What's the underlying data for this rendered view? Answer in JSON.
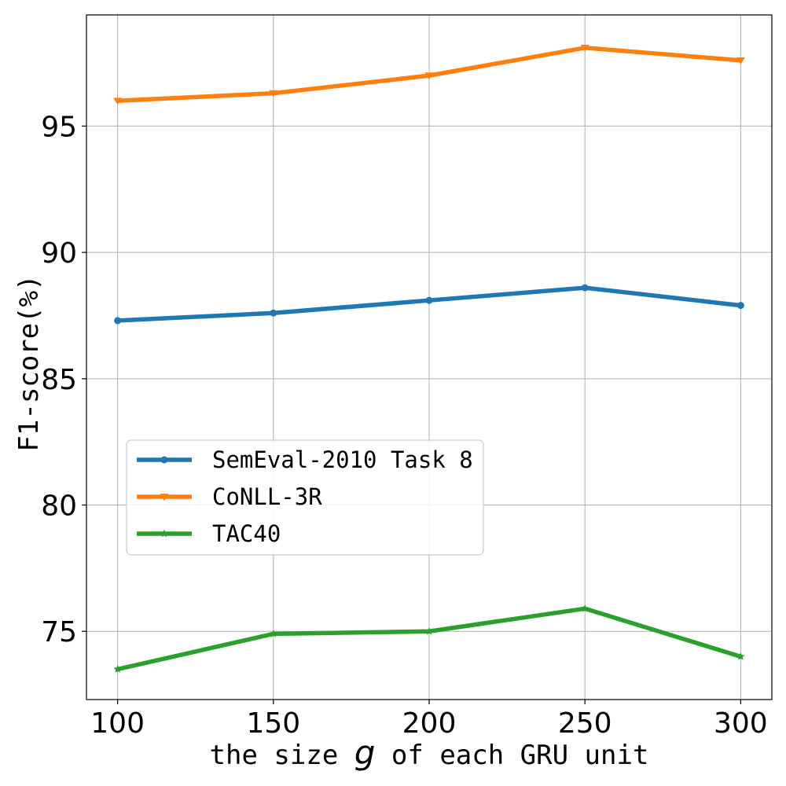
{
  "chart_data": {
    "type": "line",
    "xlabel": {
      "before": "the size ",
      "var": "g",
      "after": " of each GRU unit"
    },
    "ylabel": "F1-score(%)",
    "x": [
      100,
      150,
      200,
      250,
      300
    ],
    "x_ticks": [
      100,
      150,
      200,
      250,
      300
    ],
    "y_ticks": [
      75,
      80,
      85,
      90,
      95
    ],
    "xlim": [
      90,
      310
    ],
    "ylim": [
      72.3,
      99.4
    ],
    "grid": true,
    "legend_position": "center-left",
    "series": [
      {
        "name": "SemEval-2010 Task 8",
        "values": [
          87.3,
          87.6,
          88.1,
          88.6,
          87.9
        ],
        "color": "#1f77b4",
        "marker": "circle"
      },
      {
        "name": "CoNLL-3R",
        "values": [
          96.0,
          96.3,
          97.0,
          98.1,
          97.6
        ],
        "color": "#ff7f0e",
        "marker": "triangle-down"
      },
      {
        "name": "TAC40",
        "values": [
          73.5,
          74.9,
          75.0,
          75.9,
          74.0
        ],
        "color": "#2ca02c",
        "marker": "star"
      }
    ]
  }
}
